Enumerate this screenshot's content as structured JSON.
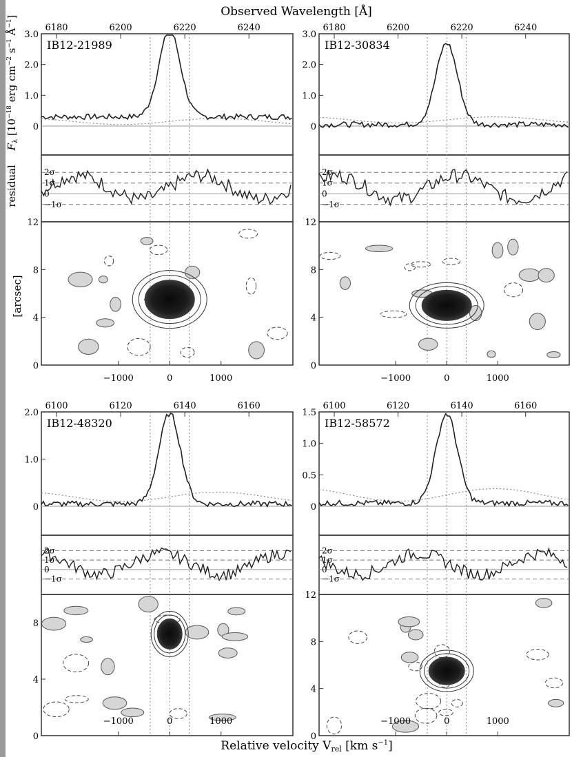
{
  "figure": {
    "top_label": "Observed Wavelength [Å]",
    "bottom_label": "Relative velocity V",
    "bottom_label_sub": "rel",
    "bottom_label_unit": " [km s",
    "bottom_label_unit_sup": "−1",
    "bottom_label_close": "]",
    "flux_label_sym": "F",
    "flux_label_sub": "λ",
    "flux_label_units": " [10",
    "flux_label_exp": "−18",
    "flux_label_tail": " erg cm",
    "flux_label_exp2": "−2",
    "flux_label_s": " s",
    "flux_label_exp3": "−1",
    "flux_label_A": " Å",
    "flux_label_exp4": "−1",
    "flux_label_close": "]",
    "residual_label": "residual",
    "arcsec_label": "[arcsec]",
    "residual_ticks": [
      "2σ",
      "1σ",
      "0",
      "−1σ"
    ],
    "colors": {
      "line": "#222222",
      "dotted": "#8a8a8a",
      "blob": "#1c1c1c",
      "shade": "#d6d6d6"
    }
  },
  "chart_data": [
    {
      "type": "line",
      "object": "IB12-21989",
      "top_axis_ticks": [
        "6180",
        "6200",
        "6220",
        "6240"
      ],
      "top_axis_values": [
        6180,
        6200,
        6220,
        6240
      ],
      "flux_ylim": [
        0,
        3.0
      ],
      "flux_ticks": [
        "0",
        "1.0",
        "2.0",
        "3.0"
      ],
      "velocity_ticks": [
        "−1000",
        "0",
        "1000"
      ],
      "velocity_values": [
        -1000,
        0,
        1000
      ],
      "arcsec_ticks": [
        "0",
        "4",
        "8",
        "12"
      ],
      "blob_center_arcsec": 5.5
    },
    {
      "type": "line",
      "object": "IB12-30834",
      "top_axis_ticks": [
        "6180",
        "6200",
        "6220",
        "6240"
      ],
      "top_axis_values": [
        6180,
        6200,
        6220,
        6240
      ],
      "flux_ylim": [
        0,
        3.0
      ],
      "flux_ticks": [
        "0",
        "1.0",
        "2.0",
        "3.0"
      ],
      "velocity_ticks": [
        "−1000",
        "0",
        "1000"
      ],
      "velocity_values": [
        -1000,
        0,
        1000
      ],
      "arcsec_ticks": [
        "0",
        "4",
        "8",
        "12"
      ],
      "blob_center_arcsec": 5.0
    },
    {
      "type": "line",
      "object": "IB12-48320",
      "top_axis_ticks": [
        "6100",
        "6120",
        "6140",
        "6160"
      ],
      "top_axis_values": [
        6100,
        6120,
        6140,
        6160
      ],
      "flux_ylim": [
        0,
        2.0
      ],
      "flux_ticks": [
        "0",
        "1.0",
        "2.0"
      ],
      "velocity_ticks": [
        "−1000",
        "0",
        "1000"
      ],
      "velocity_values": [
        -1000,
        0,
        1000
      ],
      "arcsec_ticks": [
        "0",
        "4",
        "8"
      ],
      "blob_center_arcsec": 7.2
    },
    {
      "type": "line",
      "object": "IB12-58572",
      "top_axis_ticks": [
        "6100",
        "6120",
        "6140",
        "6160"
      ],
      "top_axis_values": [
        6100,
        6120,
        6140,
        6160
      ],
      "flux_ylim": [
        0,
        1.5
      ],
      "flux_ticks": [
        "0",
        "0.5",
        "1.0",
        "1.5"
      ],
      "velocity_ticks": [
        "−1000",
        "0",
        "1000"
      ],
      "velocity_values": [
        -1000,
        0,
        1000
      ],
      "arcsec_ticks": [
        "0",
        "4",
        "8",
        "12"
      ],
      "blob_center_arcsec": 5.5
    }
  ]
}
